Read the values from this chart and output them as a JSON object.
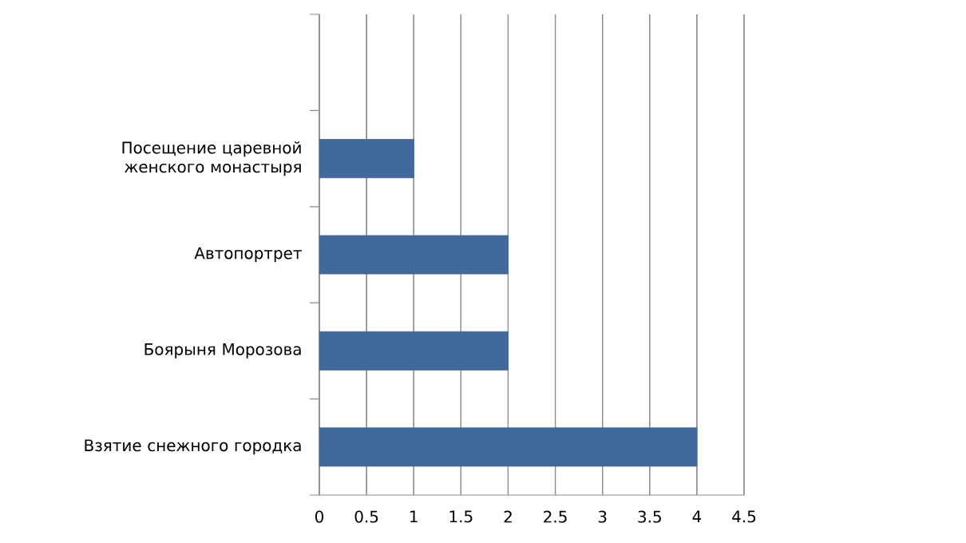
{
  "chart_data": {
    "type": "bar",
    "orientation": "horizontal",
    "categories": [
      null,
      "Посещение царевной женского монастыря",
      "Автопортрет",
      "Боярыня Морозова",
      "Взятие снежного городка"
    ],
    "values": [
      null,
      1,
      2,
      2,
      4
    ],
    "color": "#41699b",
    "xlim": [
      0,
      4.5
    ],
    "xticks": [
      0,
      0.5,
      1,
      1.5,
      2,
      2.5,
      3,
      3.5,
      4,
      4.5
    ],
    "grid": "x"
  }
}
